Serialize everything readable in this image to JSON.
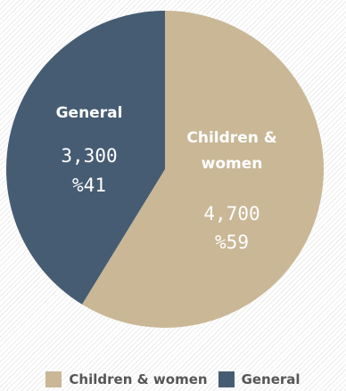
{
  "chart_data": {
    "type": "pie",
    "title": "",
    "slices": [
      {
        "name": "Children & women",
        "label_lines": [
          "Children &",
          "women"
        ],
        "value": 4700,
        "value_text": "4,700",
        "percent_text": "%59",
        "color": "#c9b796"
      },
      {
        "name": "General",
        "label_lines": [
          "General"
        ],
        "value": 3300,
        "value_text": "3,300",
        "percent_text": "%41",
        "color": "#465c73"
      }
    ],
    "legend": {
      "position": "bottom",
      "items": [
        {
          "label": "Children & women",
          "color": "#c9b796"
        },
        {
          "label": "General",
          "color": "#465c73"
        }
      ]
    }
  }
}
